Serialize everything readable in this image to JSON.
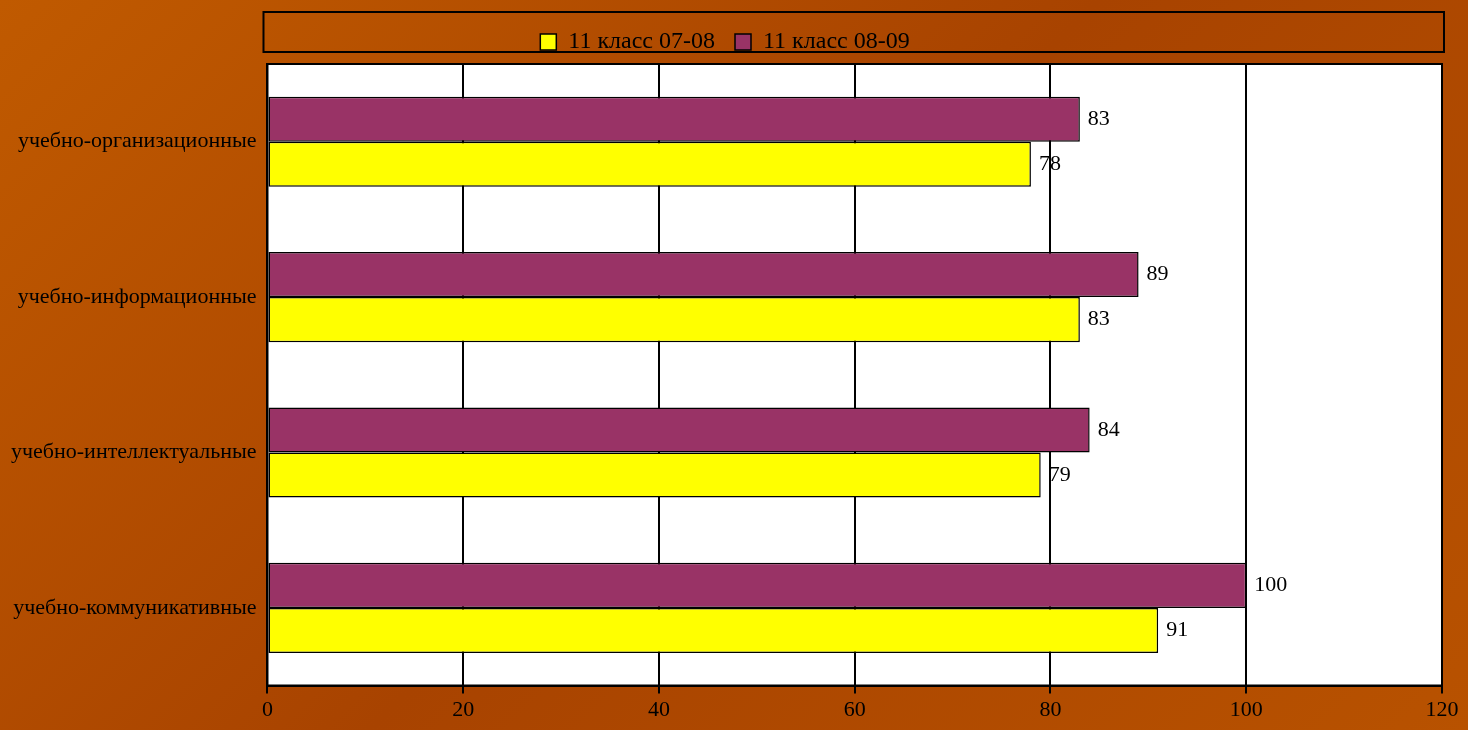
{
  "chart_data": {
    "type": "bar",
    "orientation": "horizontal",
    "categories": [
      "учебно-организационные",
      "учебно-информационные",
      "учебно-интеллектуальные",
      "учебно-коммуникативные"
    ],
    "series": [
      {
        "name": "11 класс 07-08",
        "color": "#ffff00",
        "values": [
          78,
          83,
          79,
          91
        ]
      },
      {
        "name": "11 класс 08-09",
        "color": "#993366",
        "values": [
          83,
          89,
          84,
          100
        ]
      }
    ],
    "xlim": [
      0,
      120
    ],
    "xticks": [
      0,
      20,
      40,
      60,
      80,
      100,
      120
    ],
    "grid": "x",
    "legend": "top",
    "data_labels": true
  }
}
